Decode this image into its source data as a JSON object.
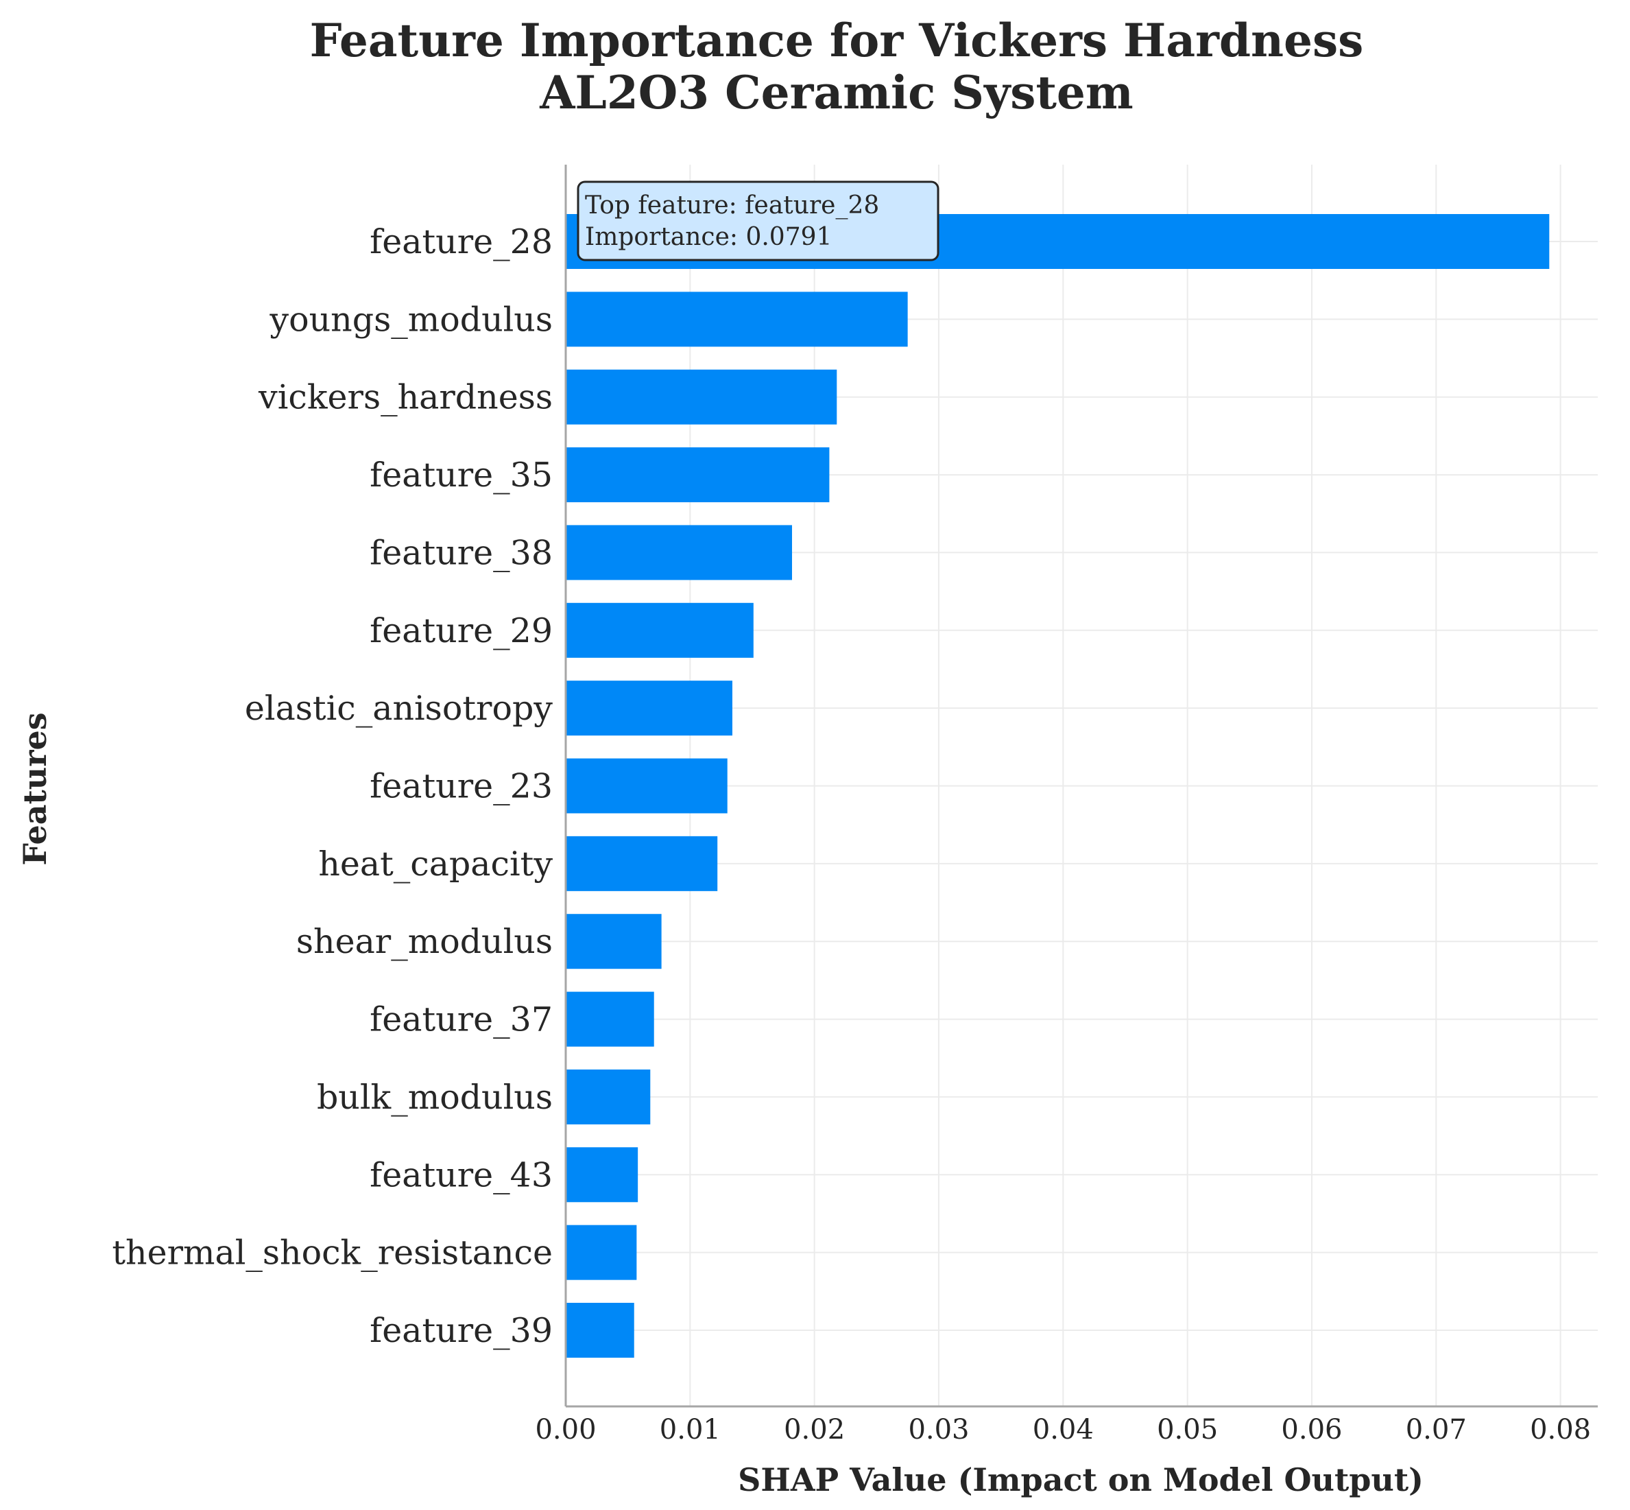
{
  "chart_data": {
    "type": "bar",
    "orientation": "horizontal",
    "title": "Feature Importance for Vickers Hardness\nAL2O3 Ceramic System",
    "xlabel": "SHAP Value (Impact on Model Output)",
    "ylabel": "Features",
    "xlim": [
      0,
      0.083
    ],
    "xticks": [
      0.0,
      0.01,
      0.02,
      0.03,
      0.04,
      0.05,
      0.06,
      0.07,
      0.08
    ],
    "xtick_labels": [
      "0.00",
      "0.01",
      "0.02",
      "0.03",
      "0.04",
      "0.05",
      "0.06",
      "0.07",
      "0.08"
    ],
    "grid": true,
    "categories": [
      "feature_28",
      "youngs_modulus",
      "vickers_hardness",
      "feature_35",
      "feature_38",
      "feature_29",
      "elastic_anisotropy",
      "feature_23",
      "heat_capacity",
      "shear_modulus",
      "feature_37",
      "bulk_modulus",
      "feature_43",
      "thermal_shock_resistance",
      "feature_39"
    ],
    "values": [
      0.0791,
      0.0275,
      0.0218,
      0.0212,
      0.0182,
      0.0151,
      0.0134,
      0.013,
      0.0122,
      0.0077,
      0.0071,
      0.0068,
      0.0058,
      0.0057,
      0.0055
    ],
    "bar_color": "#0088f7",
    "annotation": {
      "lines": [
        "Top feature: feature_28",
        "Importance: 0.0791"
      ],
      "background": "#cce7ff",
      "border": "#262626"
    }
  }
}
